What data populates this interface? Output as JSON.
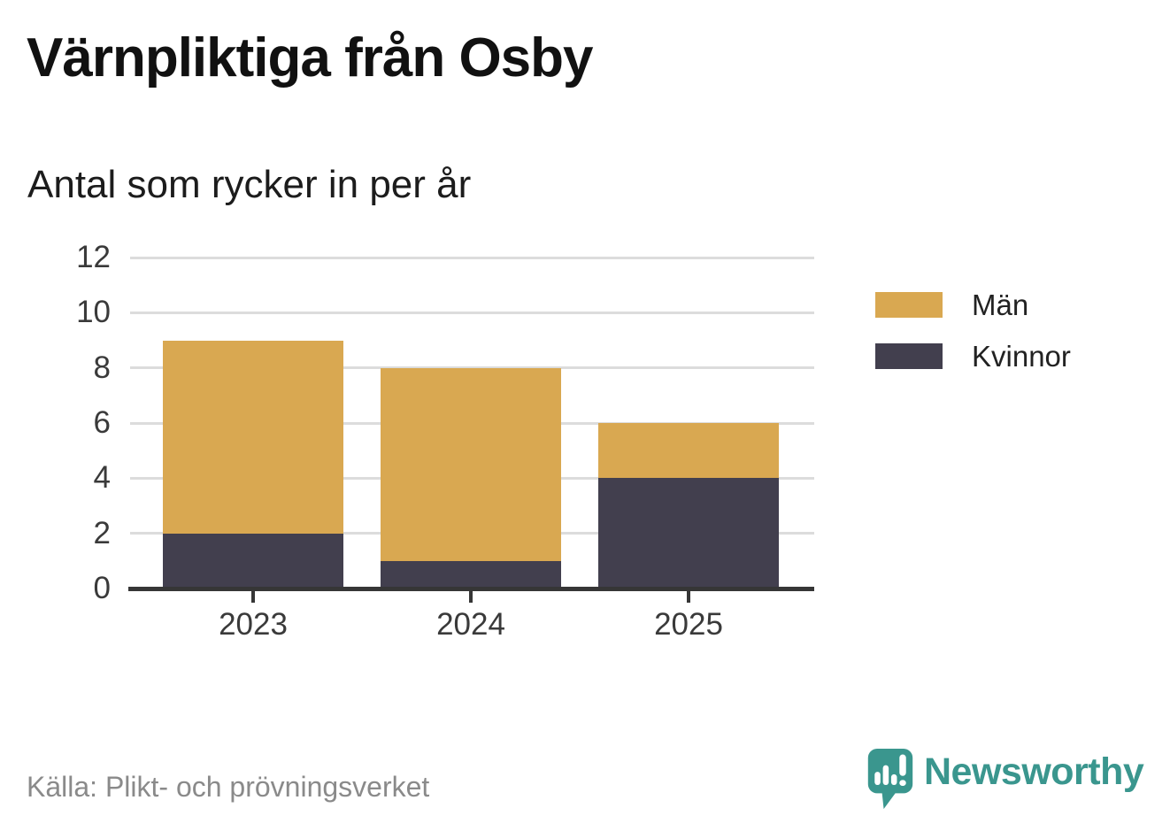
{
  "header": {
    "title": "Värnpliktiga från Osby",
    "subtitle": "Antal som rycker in per år"
  },
  "legend": {
    "items": [
      {
        "label": "Män",
        "color": "#d9a851"
      },
      {
        "label": "Kvinnor",
        "color": "#423f4e"
      }
    ]
  },
  "footer": {
    "source": "Källa: Plikt- och prövningsverket",
    "brand_name": "Newsworthy"
  },
  "colors": {
    "men": "#d9a851",
    "women": "#423f4e",
    "grid": "#dcdcdc",
    "axis": "#363636",
    "tick_text": "#3a3a3a",
    "source_text": "#8a8a8a",
    "brand": "#3a968e"
  },
  "chart_data": {
    "type": "bar",
    "stacked": true,
    "title": "Värnpliktiga från Osby",
    "subtitle": "Antal som rycker in per år",
    "categories": [
      "2023",
      "2024",
      "2025"
    ],
    "series": [
      {
        "name": "Män",
        "values": [
          7,
          7,
          2
        ],
        "color": "#d9a851"
      },
      {
        "name": "Kvinnor",
        "values": [
          2,
          1,
          4
        ],
        "color": "#423f4e"
      }
    ],
    "stack_bottom_to_top": [
      "Kvinnor",
      "Män"
    ],
    "totals": [
      9,
      8,
      6
    ],
    "xlabel": "",
    "ylabel": "",
    "ylim": [
      0,
      12
    ],
    "yticks": [
      0,
      2,
      4,
      6,
      8,
      10,
      12
    ],
    "grid": true,
    "legend_position": "right"
  }
}
